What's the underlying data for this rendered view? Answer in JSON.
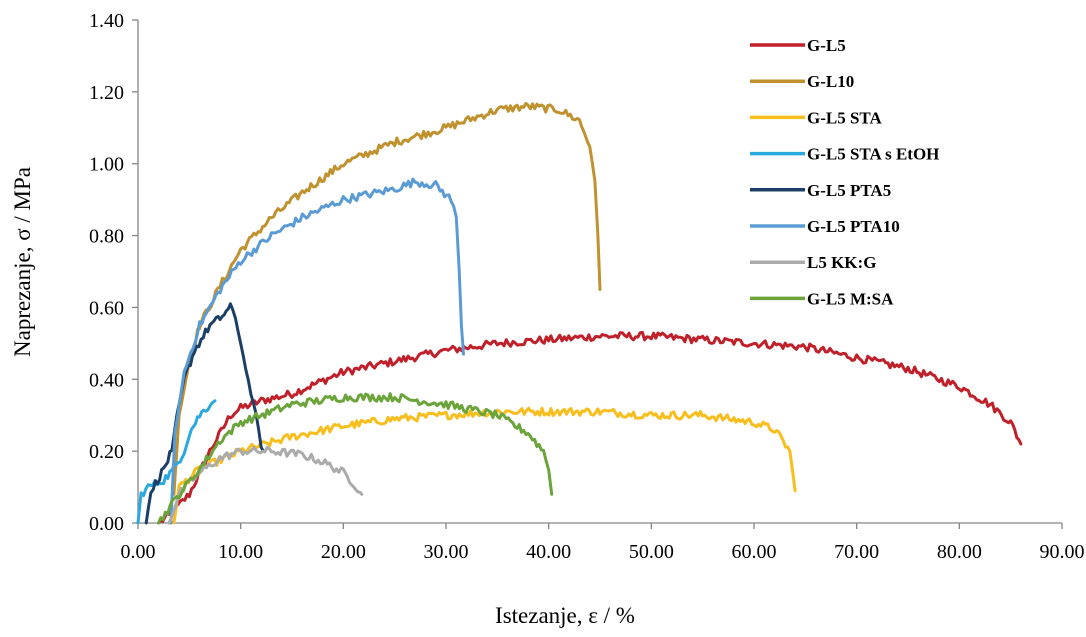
{
  "chart_data": {
    "type": "line",
    "xlabel": "Istezanje, ε / %",
    "ylabel": "Naprezanje, σ / MPa",
    "xlim": [
      0,
      90
    ],
    "ylim": [
      0,
      1.4
    ],
    "x_ticks": [
      "0.00",
      "10.00",
      "20.00",
      "30.00",
      "40.00",
      "50.00",
      "60.00",
      "70.00",
      "80.00",
      "90.00"
    ],
    "y_ticks": [
      "0.00",
      "0.20",
      "0.40",
      "0.60",
      "0.80",
      "1.00",
      "1.20",
      "1.40"
    ],
    "grid": false,
    "legend_position": "top-right",
    "series": [
      {
        "name": "G-L5",
        "color": "#C0202A",
        "points": [
          [
            2,
            0
          ],
          [
            3,
            0.02
          ],
          [
            5,
            0.08
          ],
          [
            7,
            0.2
          ],
          [
            9,
            0.3
          ],
          [
            10,
            0.32
          ],
          [
            12,
            0.34
          ],
          [
            15,
            0.36
          ],
          [
            20,
            0.42
          ],
          [
            25,
            0.45
          ],
          [
            30,
            0.48
          ],
          [
            35,
            0.5
          ],
          [
            40,
            0.51
          ],
          [
            45,
            0.52
          ],
          [
            50,
            0.52
          ],
          [
            55,
            0.51
          ],
          [
            60,
            0.5
          ],
          [
            65,
            0.49
          ],
          [
            70,
            0.46
          ],
          [
            75,
            0.43
          ],
          [
            80,
            0.38
          ],
          [
            83,
            0.33
          ],
          [
            85,
            0.28
          ],
          [
            86,
            0.22
          ]
        ]
      },
      {
        "name": "G-L10",
        "color": "#C0922F",
        "points": [
          [
            3.5,
            0.08
          ],
          [
            4,
            0.3
          ],
          [
            5,
            0.45
          ],
          [
            6,
            0.55
          ],
          [
            8,
            0.66
          ],
          [
            10,
            0.76
          ],
          [
            13,
            0.85
          ],
          [
            16,
            0.92
          ],
          [
            20,
            1.0
          ],
          [
            25,
            1.06
          ],
          [
            30,
            1.1
          ],
          [
            35,
            1.15
          ],
          [
            38,
            1.16
          ],
          [
            41,
            1.15
          ],
          [
            43,
            1.12
          ],
          [
            44,
            1.05
          ],
          [
            44.5,
            0.95
          ],
          [
            44.8,
            0.8
          ],
          [
            45,
            0.65
          ]
        ]
      },
      {
        "name": "G-L5 STA",
        "color": "#F7BE1E",
        "points": [
          [
            3.5,
            0
          ],
          [
            4,
            0.1
          ],
          [
            6,
            0.15
          ],
          [
            10,
            0.2
          ],
          [
            15,
            0.24
          ],
          [
            20,
            0.27
          ],
          [
            25,
            0.29
          ],
          [
            30,
            0.3
          ],
          [
            35,
            0.31
          ],
          [
            40,
            0.31
          ],
          [
            45,
            0.31
          ],
          [
            50,
            0.3
          ],
          [
            55,
            0.3
          ],
          [
            60,
            0.28
          ],
          [
            62,
            0.26
          ],
          [
            63.5,
            0.2
          ],
          [
            64,
            0.09
          ]
        ]
      },
      {
        "name": "G-L5 STA s EtOH",
        "color": "#2AA8E0",
        "points": [
          [
            0,
            0
          ],
          [
            0.3,
            0.08
          ],
          [
            1,
            0.1
          ],
          [
            2.5,
            0.12
          ],
          [
            3.5,
            0.15
          ],
          [
            4.5,
            0.2
          ],
          [
            5,
            0.25
          ],
          [
            6,
            0.3
          ],
          [
            7,
            0.33
          ],
          [
            7.5,
            0.34
          ]
        ]
      },
      {
        "name": "G-L5 PTA5",
        "color": "#1B3F66",
        "points": [
          [
            0.8,
            0
          ],
          [
            1,
            0.05
          ],
          [
            1.5,
            0.1
          ],
          [
            2.5,
            0.15
          ],
          [
            3.3,
            0.2
          ],
          [
            3.8,
            0.3
          ],
          [
            4.5,
            0.4
          ],
          [
            5.5,
            0.48
          ],
          [
            7,
            0.55
          ],
          [
            8,
            0.57
          ],
          [
            9,
            0.6
          ],
          [
            9.5,
            0.57
          ],
          [
            10,
            0.5
          ],
          [
            10.5,
            0.43
          ],
          [
            11,
            0.36
          ],
          [
            11.5,
            0.3
          ],
          [
            12,
            0.22
          ],
          [
            12.2,
            0.2
          ]
        ]
      },
      {
        "name": "G-L5 PTA10",
        "color": "#5B9BD5",
        "points": [
          [
            3.2,
            0
          ],
          [
            3.6,
            0.25
          ],
          [
            4.5,
            0.42
          ],
          [
            6,
            0.55
          ],
          [
            8,
            0.65
          ],
          [
            10,
            0.73
          ],
          [
            13,
            0.8
          ],
          [
            16,
            0.85
          ],
          [
            20,
            0.9
          ],
          [
            25,
            0.93
          ],
          [
            27,
            0.95
          ],
          [
            29,
            0.94
          ],
          [
            30.5,
            0.9
          ],
          [
            31,
            0.85
          ],
          [
            31.3,
            0.7
          ],
          [
            31.5,
            0.55
          ],
          [
            31.7,
            0.47
          ]
        ]
      },
      {
        "name": "L5 KK:G",
        "color": "#ABABAB",
        "points": [
          [
            3,
            0
          ],
          [
            4,
            0.08
          ],
          [
            6,
            0.14
          ],
          [
            8,
            0.18
          ],
          [
            10,
            0.2
          ],
          [
            13,
            0.2
          ],
          [
            16,
            0.19
          ],
          [
            18,
            0.17
          ],
          [
            20,
            0.14
          ],
          [
            21,
            0.11
          ],
          [
            21.8,
            0.08
          ]
        ]
      },
      {
        "name": "G-L5 M:SA",
        "color": "#6BA43A",
        "points": [
          [
            2,
            0
          ],
          [
            4,
            0.08
          ],
          [
            6,
            0.15
          ],
          [
            8,
            0.23
          ],
          [
            10,
            0.28
          ],
          [
            13,
            0.31
          ],
          [
            15,
            0.33
          ],
          [
            20,
            0.35
          ],
          [
            25,
            0.35
          ],
          [
            30,
            0.33
          ],
          [
            35,
            0.3
          ],
          [
            38,
            0.25
          ],
          [
            39.5,
            0.2
          ],
          [
            40,
            0.15
          ],
          [
            40.3,
            0.08
          ]
        ]
      }
    ]
  }
}
